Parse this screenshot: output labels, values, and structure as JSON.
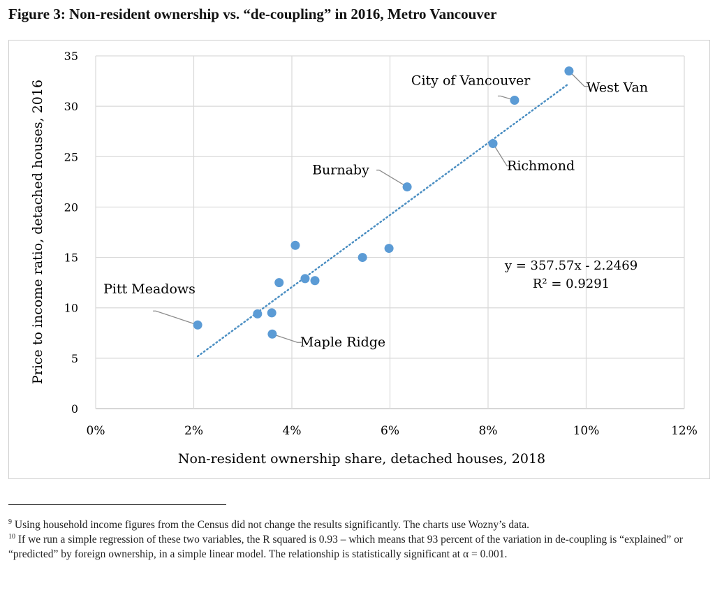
{
  "title": "Figure 3: Non-resident ownership vs. “de-coupling” in 2016, Metro Vancouver",
  "chart_data": {
    "type": "scatter",
    "xlabel": "Non-resident ownership share, detached houses, 2018",
    "ylabel": "Price to income ratio, detached houses, 2016",
    "xlim": [
      0,
      0.12
    ],
    "ylim": [
      0,
      35
    ],
    "xticks": [
      "0%",
      "2%",
      "4%",
      "6%",
      "8%",
      "10%",
      "12%"
    ],
    "yticks": [
      "0",
      "5",
      "10",
      "15",
      "20",
      "25",
      "30",
      "35"
    ],
    "grid": true,
    "marker_color": "#5b9bd5",
    "trend_color": "#4a8ec2",
    "points": [
      {
        "x": 0.0208,
        "y": 8.3,
        "label": "Pitt Meadows"
      },
      {
        "x": 0.033,
        "y": 9.4
      },
      {
        "x": 0.0359,
        "y": 9.5
      },
      {
        "x": 0.036,
        "y": 7.4,
        "label": "Maple Ridge"
      },
      {
        "x": 0.0374,
        "y": 12.5
      },
      {
        "x": 0.0407,
        "y": 16.2
      },
      {
        "x": 0.0427,
        "y": 12.9
      },
      {
        "x": 0.0447,
        "y": 12.7
      },
      {
        "x": 0.0544,
        "y": 15.0
      },
      {
        "x": 0.0598,
        "y": 15.9
      },
      {
        "x": 0.0635,
        "y": 22.0,
        "label": "Burnaby"
      },
      {
        "x": 0.081,
        "y": 26.3,
        "label": "Richmond"
      },
      {
        "x": 0.0854,
        "y": 30.6,
        "label": "City of Vancouver"
      },
      {
        "x": 0.0965,
        "y": 33.5,
        "label": "West Van"
      }
    ],
    "trendline": {
      "slope": 357.57,
      "intercept": -2.2469,
      "equation": "y = 357.57x - 2.2469",
      "r2": "R² = 0.9291"
    }
  },
  "footnotes": [
    {
      "num": "9",
      "text": "Using household income figures from the Census did not change the results significantly. The charts use Wozny’s data."
    },
    {
      "num": "10",
      "text": "If we run a simple regression of these two variables, the R squared is 0.93 – which means that 93 percent of the variation in de-coupling is “explained” or “predicted” by foreign ownership, in a simple linear model. The relationship is statistically significant at α = 0.001."
    }
  ]
}
